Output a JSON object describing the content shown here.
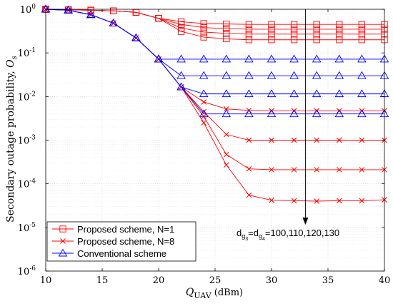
{
  "chart_data": {
    "type": "line",
    "title": "",
    "xlabel": "Q",
    "xlabel_sub": "UAV",
    "xlabel_unit": " (dBm)",
    "ylabel": "Secondary outage probability, ",
    "ylabel_symbol": "O",
    "ylabel_symbol_sub": "s",
    "xlim": [
      10,
      40
    ],
    "ylim_log10": [
      -6,
      0
    ],
    "yscale": "log",
    "grid": true,
    "legend_position": "bottom-left",
    "xticks": [
      10,
      15,
      20,
      25,
      30,
      35,
      40
    ],
    "yticks": [
      {
        "mantissa": "10",
        "exp": "-6",
        "log": -6
      },
      {
        "mantissa": "10",
        "exp": "-5",
        "log": -5
      },
      {
        "mantissa": "10",
        "exp": "-4",
        "log": -4
      },
      {
        "mantissa": "10",
        "exp": "-3",
        "log": -3
      },
      {
        "mantissa": "10",
        "exp": "-2",
        "log": -2
      },
      {
        "mantissa": "10",
        "exp": "-1",
        "log": -1
      },
      {
        "mantissa": "10",
        "exp": "0",
        "log": 0
      }
    ],
    "annotation": {
      "parts": [
        {
          "t": "d",
          "s": "n"
        },
        {
          "t": "g",
          "s": "sub"
        },
        {
          "t": "3",
          "s": "subsub"
        },
        {
          "t": "=d",
          "s": "n"
        },
        {
          "t": "g",
          "s": "sub"
        },
        {
          "t": "4",
          "s": "subsub"
        },
        {
          "t": "=100,110,120,130",
          "s": "n"
        }
      ],
      "arrow_x": 33,
      "arrow_from_y": 1.0,
      "arrow_to_y": 1.2e-05
    },
    "legend": [
      {
        "label": "Proposed scheme, N=1",
        "color": "#ff0000",
        "marker": "square"
      },
      {
        "label": "Proposed scheme, N=8",
        "color": "#ff0000",
        "marker": "x"
      },
      {
        "label": "Conventional scheme",
        "color": "#0000ff",
        "marker": "triangle"
      }
    ],
    "series": [
      {
        "group": "Proposed scheme, N=1",
        "color": "#ff0000",
        "marker": "square",
        "x": [
          10,
          12,
          14,
          16,
          18,
          20,
          22,
          24,
          26,
          28,
          30,
          32,
          34,
          36,
          38,
          40
        ],
        "y": [
          1,
          0.97,
          0.95,
          0.92,
          0.85,
          0.62,
          0.52,
          0.47,
          0.46,
          0.45,
          0.45,
          0.45,
          0.45,
          0.45,
          0.45,
          0.45
        ]
      },
      {
        "group": "Proposed scheme, N=1",
        "color": "#ff0000",
        "marker": "square",
        "x": [
          10,
          12,
          14,
          16,
          18,
          20,
          22,
          24,
          26,
          28,
          30,
          32,
          34,
          36,
          38,
          40
        ],
        "y": [
          1,
          0.97,
          0.95,
          0.92,
          0.85,
          0.62,
          0.45,
          0.38,
          0.36,
          0.35,
          0.35,
          0.35,
          0.35,
          0.35,
          0.35,
          0.35
        ]
      },
      {
        "group": "Proposed scheme, N=1",
        "color": "#ff0000",
        "marker": "square",
        "x": [
          10,
          12,
          14,
          16,
          18,
          20,
          22,
          24,
          26,
          28,
          30,
          32,
          34,
          36,
          38,
          40
        ],
        "y": [
          1,
          0.97,
          0.95,
          0.92,
          0.85,
          0.62,
          0.37,
          0.3,
          0.28,
          0.27,
          0.27,
          0.27,
          0.27,
          0.27,
          0.27,
          0.27
        ]
      },
      {
        "group": "Proposed scheme, N=1",
        "color": "#ff0000",
        "marker": "square",
        "x": [
          10,
          12,
          14,
          16,
          18,
          20,
          22,
          24,
          26,
          28,
          30,
          32,
          34,
          36,
          38,
          40
        ],
        "y": [
          1,
          0.97,
          0.95,
          0.92,
          0.85,
          0.62,
          0.31,
          0.23,
          0.21,
          0.2,
          0.2,
          0.2,
          0.2,
          0.2,
          0.2,
          0.2
        ]
      },
      {
        "group": "Proposed scheme, N=8",
        "color": "#ff0000",
        "marker": "x",
        "x": [
          10,
          12,
          14,
          16,
          18,
          20,
          22,
          24,
          26,
          28,
          30,
          32,
          34,
          36,
          38,
          40
        ],
        "y": [
          1,
          0.95,
          0.75,
          0.48,
          0.22,
          0.072,
          0.0165,
          0.0075,
          0.0052,
          0.0048,
          0.0047,
          0.0047,
          0.0047,
          0.0047,
          0.0047,
          0.0047
        ]
      },
      {
        "group": "Proposed scheme, N=8",
        "color": "#ff0000",
        "marker": "x",
        "x": [
          10,
          12,
          14,
          16,
          18,
          20,
          22,
          24,
          26,
          28,
          30,
          32,
          34,
          36,
          38,
          40
        ],
        "y": [
          1,
          0.95,
          0.75,
          0.48,
          0.22,
          0.072,
          0.0165,
          0.0045,
          0.00135,
          0.001,
          0.001,
          0.001,
          0.001,
          0.001,
          0.001,
          0.001
        ]
      },
      {
        "group": "Proposed scheme, N=8",
        "color": "#ff0000",
        "marker": "x",
        "x": [
          10,
          12,
          14,
          16,
          18,
          20,
          22,
          24,
          26,
          28,
          30,
          32,
          34,
          36,
          38,
          40
        ],
        "y": [
          1,
          0.95,
          0.75,
          0.48,
          0.22,
          0.072,
          0.0165,
          0.0035,
          0.00047,
          0.00022,
          0.00021,
          0.00021,
          0.00021,
          0.00021,
          0.00021,
          0.00021
        ]
      },
      {
        "group": "Proposed scheme, N=8",
        "color": "#ff0000",
        "marker": "x",
        "x": [
          10,
          12,
          14,
          16,
          18,
          20,
          22,
          24,
          26,
          28,
          30,
          32,
          34,
          36,
          38,
          40
        ],
        "y": [
          1,
          0.95,
          0.75,
          0.48,
          0.22,
          0.072,
          0.0165,
          0.0025,
          0.00027,
          5.5e-05,
          4.2e-05,
          4.1e-05,
          4e-05,
          4.1e-05,
          4.1e-05,
          4.3e-05
        ]
      },
      {
        "group": "Conventional scheme",
        "color": "#0000ff",
        "marker": "triangle",
        "x": [
          10,
          12,
          14,
          16,
          18,
          20,
          22,
          24,
          26,
          28,
          30,
          32,
          34,
          36,
          38,
          40
        ],
        "y": [
          1,
          0.95,
          0.75,
          0.48,
          0.22,
          0.072,
          0.072,
          0.072,
          0.072,
          0.072,
          0.072,
          0.072,
          0.072,
          0.072,
          0.072,
          0.072
        ]
      },
      {
        "group": "Conventional scheme",
        "color": "#0000ff",
        "marker": "triangle",
        "x": [
          10,
          12,
          14,
          16,
          18,
          20,
          22,
          24,
          26,
          28,
          30,
          32,
          34,
          36,
          38,
          40
        ],
        "y": [
          1,
          0.95,
          0.75,
          0.48,
          0.22,
          0.072,
          0.03,
          0.03,
          0.03,
          0.03,
          0.03,
          0.03,
          0.03,
          0.03,
          0.03,
          0.03
        ]
      },
      {
        "group": "Conventional scheme",
        "color": "#0000ff",
        "marker": "triangle",
        "x": [
          10,
          12,
          14,
          16,
          18,
          20,
          22,
          24,
          26,
          28,
          30,
          32,
          34,
          36,
          38,
          40
        ],
        "y": [
          1,
          0.95,
          0.75,
          0.48,
          0.22,
          0.072,
          0.0165,
          0.0115,
          0.0115,
          0.0115,
          0.0115,
          0.0115,
          0.0115,
          0.0115,
          0.0115,
          0.0115
        ]
      },
      {
        "group": "Conventional scheme",
        "color": "#0000ff",
        "marker": "triangle",
        "x": [
          10,
          12,
          14,
          16,
          18,
          20,
          22,
          24,
          26,
          28,
          30,
          32,
          34,
          36,
          38,
          40
        ],
        "y": [
          1,
          0.95,
          0.75,
          0.48,
          0.22,
          0.072,
          0.0165,
          0.004,
          0.004,
          0.004,
          0.004,
          0.004,
          0.004,
          0.004,
          0.004,
          0.004
        ]
      }
    ]
  }
}
